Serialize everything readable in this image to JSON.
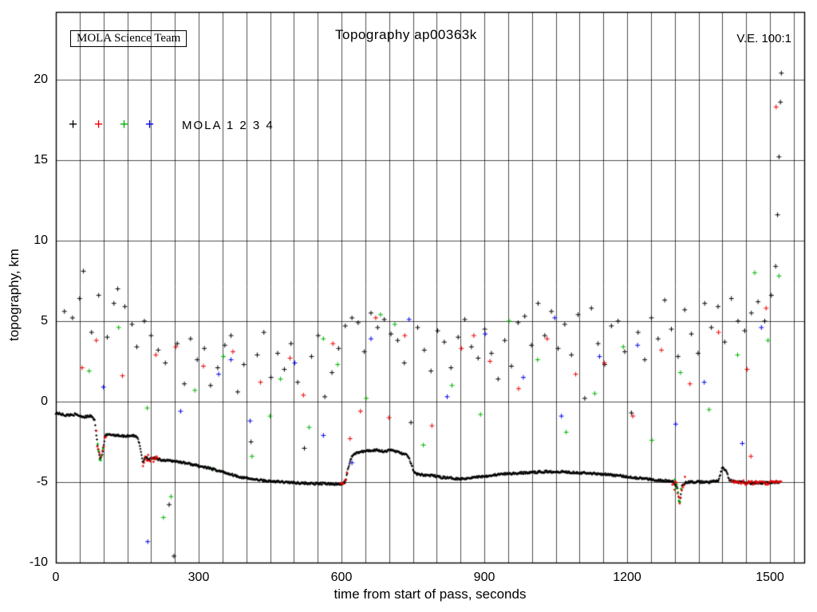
{
  "chart_data": {
    "type": "scatter",
    "title": "Topography ap00363k",
    "credit_box": "MOLA Science Team",
    "vertical_exaggeration": "V.E. 100:1",
    "xlabel": "time from start of pass, seconds",
    "ylabel": "topography, km",
    "xlim": [
      0,
      1572
    ],
    "ylim": [
      -10,
      24.2
    ],
    "x_major_ticks": [
      0,
      300,
      600,
      900,
      1200,
      1500
    ],
    "x_grid_interval": 50,
    "y_ticks": [
      -10,
      -5,
      0,
      5,
      10,
      15,
      20
    ],
    "grid": true,
    "legend": {
      "label": "MOLA 1 2 3 4",
      "markers": [
        {
          "name": "MOLA 1",
          "color": "#000000"
        },
        {
          "name": "MOLA 2",
          "color": "#ee0000"
        },
        {
          "name": "MOLA 3",
          "color": "#00b400"
        },
        {
          "name": "MOLA 4",
          "color": "#0000ee"
        }
      ]
    },
    "ground_track": {
      "color": "#000000",
      "keypoints": [
        [
          0,
          -0.7
        ],
        [
          20,
          -0.85
        ],
        [
          40,
          -0.8
        ],
        [
          60,
          -0.95
        ],
        [
          75,
          -0.9
        ],
        [
          82,
          -1.2
        ],
        [
          88,
          -2.8
        ],
        [
          93,
          -3.6
        ],
        [
          98,
          -3.2
        ],
        [
          104,
          -2.1
        ],
        [
          115,
          -2.05
        ],
        [
          130,
          -2.1
        ],
        [
          145,
          -2.15
        ],
        [
          160,
          -2.1
        ],
        [
          172,
          -2.2
        ],
        [
          178,
          -3.0
        ],
        [
          183,
          -3.8
        ],
        [
          188,
          -3.4
        ],
        [
          196,
          -3.6
        ],
        [
          205,
          -3.5
        ],
        [
          215,
          -3.6
        ],
        [
          230,
          -3.65
        ],
        [
          250,
          -3.7
        ],
        [
          270,
          -3.8
        ],
        [
          300,
          -4.0
        ],
        [
          330,
          -4.2
        ],
        [
          360,
          -4.45
        ],
        [
          390,
          -4.7
        ],
        [
          420,
          -4.85
        ],
        [
          450,
          -4.95
        ],
        [
          480,
          -5.0
        ],
        [
          510,
          -5.05
        ],
        [
          540,
          -5.1
        ],
        [
          570,
          -5.1
        ],
        [
          600,
          -5.15
        ],
        [
          608,
          -5.0
        ],
        [
          615,
          -4.0
        ],
        [
          622,
          -3.4
        ],
        [
          630,
          -3.2
        ],
        [
          645,
          -3.1
        ],
        [
          660,
          -3.05
        ],
        [
          675,
          -3.0
        ],
        [
          690,
          -3.1
        ],
        [
          705,
          -3.0
        ],
        [
          715,
          -3.1
        ],
        [
          725,
          -3.2
        ],
        [
          735,
          -3.3
        ],
        [
          742,
          -3.5
        ],
        [
          748,
          -4.0
        ],
        [
          752,
          -4.4
        ],
        [
          758,
          -4.5
        ],
        [
          770,
          -4.55
        ],
        [
          790,
          -4.6
        ],
        [
          810,
          -4.7
        ],
        [
          830,
          -4.75
        ],
        [
          850,
          -4.8
        ],
        [
          880,
          -4.7
        ],
        [
          910,
          -4.6
        ],
        [
          940,
          -4.5
        ],
        [
          970,
          -4.45
        ],
        [
          1000,
          -4.4
        ],
        [
          1030,
          -4.35
        ],
        [
          1060,
          -4.35
        ],
        [
          1090,
          -4.4
        ],
        [
          1120,
          -4.45
        ],
        [
          1150,
          -4.5
        ],
        [
          1180,
          -4.6
        ],
        [
          1210,
          -4.7
        ],
        [
          1240,
          -4.8
        ],
        [
          1270,
          -4.9
        ],
        [
          1295,
          -4.95
        ],
        [
          1305,
          -5.3
        ],
        [
          1310,
          -6.3
        ],
        [
          1315,
          -5.2
        ],
        [
          1325,
          -5.0
        ],
        [
          1350,
          -5.0
        ],
        [
          1375,
          -5.0
        ],
        [
          1392,
          -4.9
        ],
        [
          1400,
          -4.1
        ],
        [
          1408,
          -4.3
        ],
        [
          1415,
          -4.9
        ],
        [
          1430,
          -5.0
        ],
        [
          1460,
          -5.05
        ],
        [
          1490,
          -5.05
        ],
        [
          1520,
          -5.0
        ]
      ]
    },
    "track_overlays": [
      {
        "color": "#ee0000",
        "from": 85,
        "to": 105,
        "spread": 0.5
      },
      {
        "color": "#00b400",
        "from": 88,
        "to": 100,
        "spread": 0.4
      },
      {
        "color": "#ee0000",
        "from": 183,
        "to": 215,
        "spread": 0.5
      },
      {
        "color": "#ee0000",
        "from": 1295,
        "to": 1322,
        "spread": 0.8
      },
      {
        "color": "#00b400",
        "from": 1300,
        "to": 1315,
        "spread": 0.6
      },
      {
        "color": "#ee0000",
        "from": 1420,
        "to": 1525,
        "spread": 0.25
      },
      {
        "color": "#ee0000",
        "from": 598,
        "to": 612,
        "spread": 0.3
      }
    ],
    "noise_series": [
      {
        "name": "MOLA 1",
        "color": "#000000",
        "points": [
          [
            18,
            5.6
          ],
          [
            35,
            5.2
          ],
          [
            50,
            6.4
          ],
          [
            58,
            8.1
          ],
          [
            75,
            4.3
          ],
          [
            90,
            6.6
          ],
          [
            108,
            4.0
          ],
          [
            122,
            6.1
          ],
          [
            130,
            7.0
          ],
          [
            145,
            5.9
          ],
          [
            160,
            4.8
          ],
          [
            170,
            3.4
          ],
          [
            186,
            5.0
          ],
          [
            200,
            4.1
          ],
          [
            215,
            3.2
          ],
          [
            230,
            2.4
          ],
          [
            238,
            -6.4
          ],
          [
            248,
            -9.6
          ],
          [
            255,
            3.6
          ],
          [
            270,
            1.1
          ],
          [
            283,
            3.9
          ],
          [
            297,
            2.6
          ],
          [
            312,
            3.3
          ],
          [
            325,
            1.0
          ],
          [
            340,
            2.1
          ],
          [
            355,
            3.5
          ],
          [
            368,
            4.1
          ],
          [
            382,
            0.6
          ],
          [
            395,
            2.3
          ],
          [
            410,
            -2.5
          ],
          [
            423,
            2.9
          ],
          [
            437,
            4.3
          ],
          [
            452,
            1.5
          ],
          [
            466,
            3.0
          ],
          [
            480,
            2.0
          ],
          [
            494,
            3.6
          ],
          [
            508,
            1.2
          ],
          [
            522,
            -2.9
          ],
          [
            537,
            2.8
          ],
          [
            551,
            4.1
          ],
          [
            565,
            0.3
          ],
          [
            580,
            1.8
          ],
          [
            594,
            3.3
          ],
          [
            608,
            4.7
          ],
          [
            622,
            5.2
          ],
          [
            635,
            4.9
          ],
          [
            648,
            3.1
          ],
          [
            662,
            5.5
          ],
          [
            676,
            4.6
          ],
          [
            690,
            5.1
          ],
          [
            704,
            4.2
          ],
          [
            718,
            3.8
          ],
          [
            732,
            2.4
          ],
          [
            746,
            -1.3
          ],
          [
            760,
            4.6
          ],
          [
            774,
            3.2
          ],
          [
            788,
            1.9
          ],
          [
            802,
            4.4
          ],
          [
            816,
            3.7
          ],
          [
            830,
            2.1
          ],
          [
            845,
            4.0
          ],
          [
            859,
            5.1
          ],
          [
            873,
            3.4
          ],
          [
            887,
            2.7
          ],
          [
            901,
            4.5
          ],
          [
            915,
            3.0
          ],
          [
            929,
            1.4
          ],
          [
            943,
            3.8
          ],
          [
            957,
            2.2
          ],
          [
            971,
            4.9
          ],
          [
            985,
            5.3
          ],
          [
            999,
            3.5
          ],
          [
            1013,
            6.1
          ],
          [
            1027,
            4.1
          ],
          [
            1041,
            5.6
          ],
          [
            1055,
            3.3
          ],
          [
            1069,
            4.8
          ],
          [
            1083,
            2.9
          ],
          [
            1097,
            5.4
          ],
          [
            1111,
            0.2
          ],
          [
            1125,
            5.8
          ],
          [
            1139,
            3.6
          ],
          [
            1153,
            2.3
          ],
          [
            1167,
            4.7
          ],
          [
            1181,
            5.0
          ],
          [
            1195,
            3.1
          ],
          [
            1209,
            -0.7
          ],
          [
            1223,
            4.3
          ],
          [
            1237,
            2.6
          ],
          [
            1251,
            5.2
          ],
          [
            1265,
            3.9
          ],
          [
            1279,
            6.3
          ],
          [
            1293,
            4.5
          ],
          [
            1307,
            2.8
          ],
          [
            1321,
            5.7
          ],
          [
            1335,
            4.2
          ],
          [
            1349,
            3.0
          ],
          [
            1363,
            6.1
          ],
          [
            1377,
            4.6
          ],
          [
            1391,
            5.9
          ],
          [
            1405,
            3.7
          ],
          [
            1419,
            6.4
          ],
          [
            1433,
            5.0
          ],
          [
            1447,
            4.4
          ],
          [
            1461,
            5.5
          ],
          [
            1475,
            6.2
          ],
          [
            1489,
            5.0
          ],
          [
            1503,
            6.6
          ],
          [
            1512,
            8.4
          ],
          [
            1516,
            11.6
          ],
          [
            1519,
            15.2
          ],
          [
            1522,
            18.6
          ],
          [
            1524,
            20.4
          ]
        ]
      },
      {
        "name": "MOLA 2",
        "color": "#ee0000",
        "points": [
          [
            55,
            2.1
          ],
          [
            85,
            3.8
          ],
          [
            140,
            1.6
          ],
          [
            210,
            2.9
          ],
          [
            252,
            3.4
          ],
          [
            310,
            2.2
          ],
          [
            372,
            3.1
          ],
          [
            430,
            1.2
          ],
          [
            492,
            2.7
          ],
          [
            520,
            0.4
          ],
          [
            582,
            3.6
          ],
          [
            618,
            -2.3
          ],
          [
            640,
            -0.6
          ],
          [
            672,
            5.2
          ],
          [
            700,
            -1.0
          ],
          [
            733,
            4.1
          ],
          [
            790,
            -1.5
          ],
          [
            852,
            3.3
          ],
          [
            878,
            4.1
          ],
          [
            912,
            2.5
          ],
          [
            972,
            0.8
          ],
          [
            1032,
            3.9
          ],
          [
            1092,
            1.7
          ],
          [
            1152,
            2.4
          ],
          [
            1212,
            -0.9
          ],
          [
            1272,
            3.2
          ],
          [
            1332,
            1.1
          ],
          [
            1392,
            4.3
          ],
          [
            1452,
            2.0
          ],
          [
            1460,
            -3.4
          ],
          [
            1492,
            5.8
          ],
          [
            1513,
            18.3
          ]
        ]
      },
      {
        "name": "MOLA 3",
        "color": "#00b400",
        "points": [
          [
            70,
            1.9
          ],
          [
            132,
            4.6
          ],
          [
            192,
            -0.4
          ],
          [
            226,
            -7.2
          ],
          [
            242,
            -5.9
          ],
          [
            292,
            0.7
          ],
          [
            330,
            -4.2
          ],
          [
            352,
            2.8
          ],
          [
            412,
            -3.4
          ],
          [
            450,
            -0.9
          ],
          [
            472,
            1.4
          ],
          [
            532,
            -1.6
          ],
          [
            562,
            3.9
          ],
          [
            592,
            2.3
          ],
          [
            652,
            0.2
          ],
          [
            682,
            5.4
          ],
          [
            712,
            4.8
          ],
          [
            772,
            -2.7
          ],
          [
            832,
            1.0
          ],
          [
            892,
            -0.8
          ],
          [
            952,
            5.0
          ],
          [
            1012,
            2.6
          ],
          [
            1072,
            -1.9
          ],
          [
            1132,
            0.5
          ],
          [
            1192,
            3.4
          ],
          [
            1252,
            -2.4
          ],
          [
            1312,
            1.8
          ],
          [
            1372,
            -0.5
          ],
          [
            1432,
            2.9
          ],
          [
            1468,
            8.0
          ],
          [
            1496,
            3.8
          ],
          [
            1519,
            7.8
          ]
        ]
      },
      {
        "name": "MOLA 4",
        "color": "#0000ee",
        "points": [
          [
            100,
            0.9
          ],
          [
            193,
            -8.7
          ],
          [
            262,
            -0.6
          ],
          [
            342,
            1.7
          ],
          [
            368,
            2.6
          ],
          [
            408,
            -1.2
          ],
          [
            502,
            2.4
          ],
          [
            562,
            -2.1
          ],
          [
            622,
            -3.8
          ],
          [
            662,
            3.9
          ],
          [
            742,
            5.1
          ],
          [
            822,
            0.3
          ],
          [
            902,
            4.2
          ],
          [
            982,
            1.5
          ],
          [
            1048,
            5.2
          ],
          [
            1062,
            -0.9
          ],
          [
            1142,
            2.8
          ],
          [
            1222,
            3.5
          ],
          [
            1302,
            -1.4
          ],
          [
            1362,
            1.2
          ],
          [
            1442,
            -2.6
          ],
          [
            1482,
            4.6
          ]
        ]
      }
    ]
  }
}
